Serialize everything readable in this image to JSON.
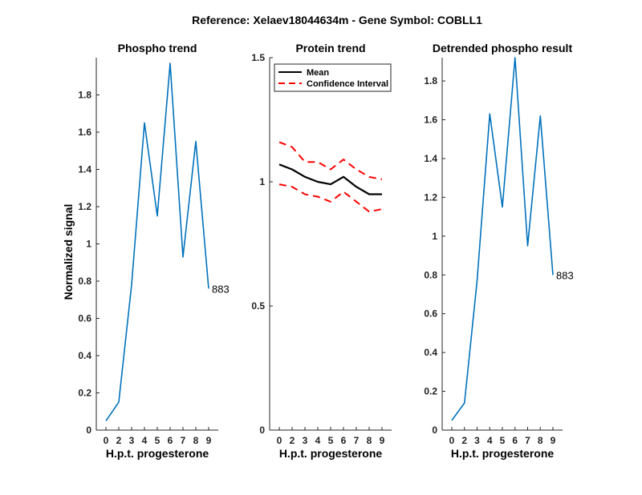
{
  "figure_title": "Reference:  Xelaev18044634m - Gene Symbol:  COBLL1",
  "chart_data": [
    {
      "type": "line",
      "title": "Phospho trend",
      "xlabel": "H.p.t. progesterone",
      "ylabel": "Normalized signal",
      "categories": [
        "0",
        "2",
        "3",
        "4",
        "5",
        "6",
        "7",
        "8",
        "9"
      ],
      "ylim": [
        0,
        2.0
      ],
      "yticks": [
        0,
        0.2,
        0.4,
        0.6,
        0.8,
        1,
        1.2,
        1.4,
        1.6,
        1.8
      ],
      "ytick_labels": [
        "0",
        "0.2",
        "0.4",
        "0.6",
        "0.8",
        "1",
        "1.2",
        "1.4",
        "1.6",
        "1.8"
      ],
      "series": [
        {
          "name": "883",
          "color": "#0072BD",
          "values": [
            0.05,
            0.15,
            0.78,
            1.65,
            1.15,
            1.97,
            0.93,
            1.55,
            0.76
          ]
        }
      ],
      "end_label": "883"
    },
    {
      "type": "line",
      "title": "Protein trend",
      "xlabel": "H.p.t. progesterone",
      "ylabel": "",
      "categories": [
        "0",
        "2",
        "3",
        "4",
        "5",
        "6",
        "7",
        "8",
        "9"
      ],
      "ylim": [
        0,
        1.5
      ],
      "yticks": [
        0,
        0.5,
        1,
        1.5
      ],
      "ytick_labels": [
        "0",
        "0.5",
        "1",
        "1.5"
      ],
      "legend": {
        "placement": "top-right",
        "entries": [
          "Mean",
          "Confidence Interval"
        ]
      },
      "series": [
        {
          "name": "Mean",
          "color": "#000000",
          "style": "solid",
          "values": [
            1.07,
            1.05,
            1.02,
            1.0,
            0.99,
            1.02,
            0.98,
            0.95,
            0.95
          ]
        },
        {
          "name": "Confidence Interval",
          "color": "#FF0000",
          "style": "dashed",
          "values": [
            1.16,
            1.14,
            1.08,
            1.08,
            1.05,
            1.09,
            1.05,
            1.02,
            1.01
          ]
        },
        {
          "name": "Confidence Interval (lower)",
          "color": "#FF0000",
          "style": "dashed",
          "values": [
            0.99,
            0.98,
            0.95,
            0.94,
            0.92,
            0.96,
            0.92,
            0.88,
            0.89
          ]
        }
      ]
    },
    {
      "type": "line",
      "title": "Detrended phospho result",
      "xlabel": "H.p.t. progesterone",
      "ylabel": "",
      "categories": [
        "0",
        "2",
        "3",
        "4",
        "5",
        "6",
        "7",
        "8",
        "9"
      ],
      "ylim": [
        0,
        1.92
      ],
      "yticks": [
        0,
        0.2,
        0.4,
        0.6,
        0.8,
        1,
        1.2,
        1.4,
        1.6,
        1.8
      ],
      "ytick_labels": [
        "0",
        "0.2",
        "0.4",
        "0.6",
        "0.8",
        "1",
        "1.2",
        "1.4",
        "1.6",
        "1.8"
      ],
      "series": [
        {
          "name": "883",
          "color": "#0072BD",
          "values": [
            0.05,
            0.14,
            0.77,
            1.63,
            1.15,
            1.92,
            0.95,
            1.62,
            0.8
          ]
        }
      ],
      "end_label": "883"
    }
  ]
}
